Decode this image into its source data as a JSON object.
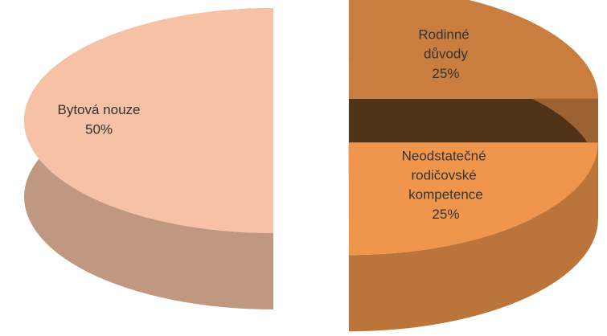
{
  "chart_data": {
    "type": "pie",
    "categories": [
      "Rodinné důvody",
      "Neodstatečné rodičovské kompetence",
      "Bytová nouze"
    ],
    "values": [
      25,
      25,
      50
    ],
    "value_labels": [
      "25%",
      "25%",
      "50%"
    ],
    "colors": [
      "#c97d3f",
      "#f0964c",
      "#f6c1a4"
    ],
    "exploded": true,
    "three_d": true
  }
}
